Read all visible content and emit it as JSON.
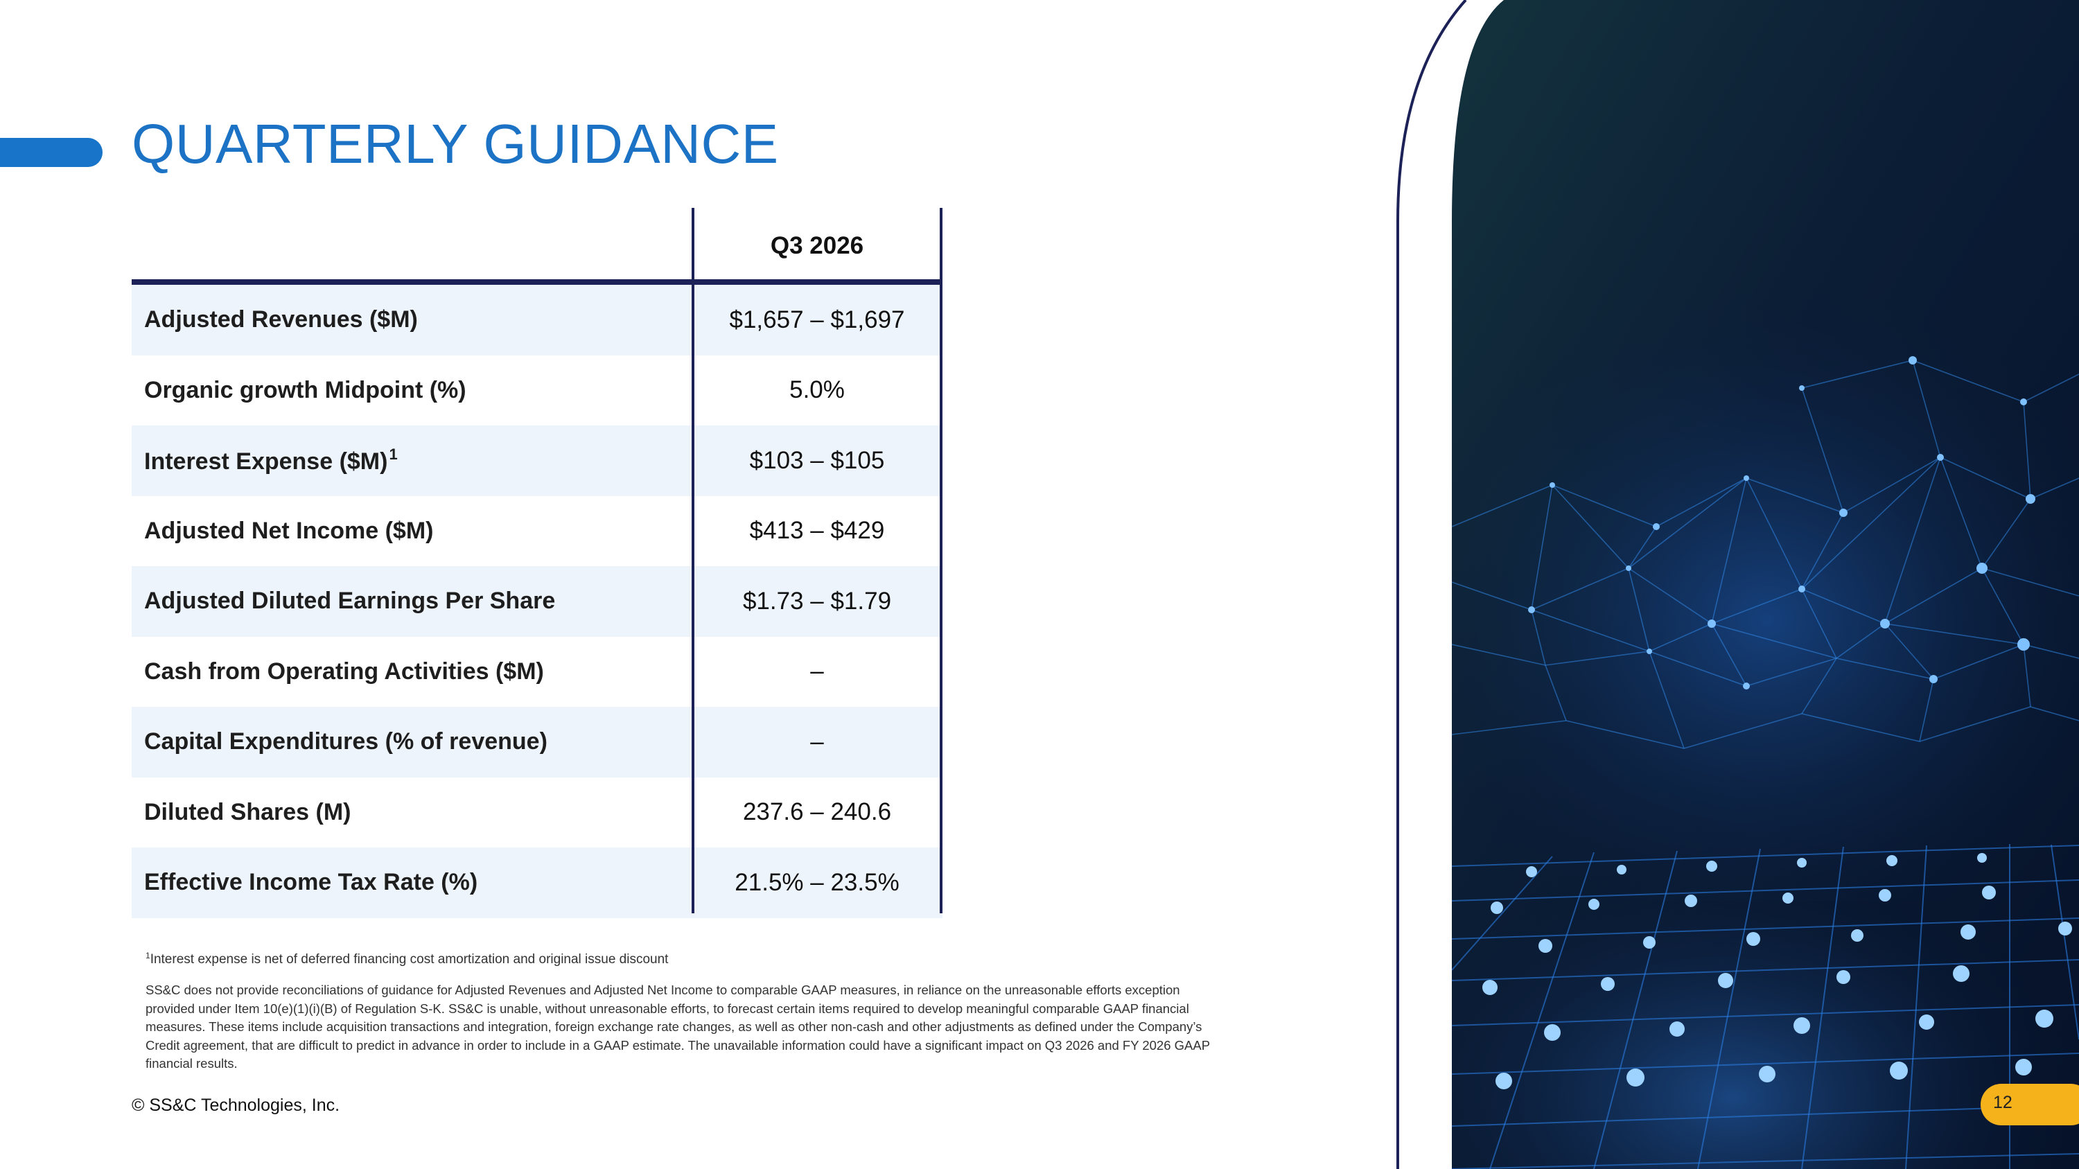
{
  "slide": {
    "title": "QUARTERLY GUIDANCE",
    "page_number": "12",
    "copyright": "© SS&C Technologies, Inc."
  },
  "colors": {
    "title_blue": "#1c72c4",
    "accent_blue": "#1874c8",
    "navy_rule": "#1c2257",
    "row_shade": "#edf4fc",
    "badge_yellow": "#f6b21b"
  },
  "table": {
    "period_header": "Q3 2026",
    "rows": [
      {
        "label": "Adjusted Revenues ($M)",
        "value": "$1,657 – $1,697"
      },
      {
        "label": "Organic growth Midpoint (%)",
        "value": "5.0%"
      },
      {
        "label": "Interest Expense ($M)",
        "label_sup": "1",
        "value": "$103 – $105"
      },
      {
        "label": "Adjusted Net Income ($M)",
        "value": "$413 – $429"
      },
      {
        "label": "Adjusted Diluted Earnings Per Share",
        "value": "$1.73 – $1.79"
      },
      {
        "label": "Cash from Operating Activities ($M)",
        "value": "–"
      },
      {
        "label": "Capital Expenditures (% of revenue)",
        "value": "–"
      },
      {
        "label": "Diluted Shares (M)",
        "value": "237.6 – 240.6"
      },
      {
        "label": "Effective Income Tax Rate (%)",
        "value": "21.5% – 23.5%"
      }
    ]
  },
  "footnotes": {
    "marker": "1",
    "interest_note": "Interest expense is net of deferred financing cost amortization and original issue discount",
    "disclaimer": "SS&C does not provide reconciliations of guidance for Adjusted Revenues and Adjusted Net Income to comparable GAAP measures, in reliance on the unreasonable efforts exception provided under Item 10(e)(1)(i)(B) of Regulation S-K.  SS&C is unable, without unreasonable efforts, to forecast certain items required to develop meaningful comparable GAAP financial measures.  These items include acquisition transactions and integration, foreign exchange rate changes, as well as other non-cash and other adjustments as defined under the Company’s Credit agreement, that are difficult to predict in advance in order to include in a GAAP estimate.  The unavailable information could have a significant impact on Q3 2026 and FY 2026 GAAP financial results."
  },
  "decoration": {
    "image": "network-mesh-image"
  }
}
